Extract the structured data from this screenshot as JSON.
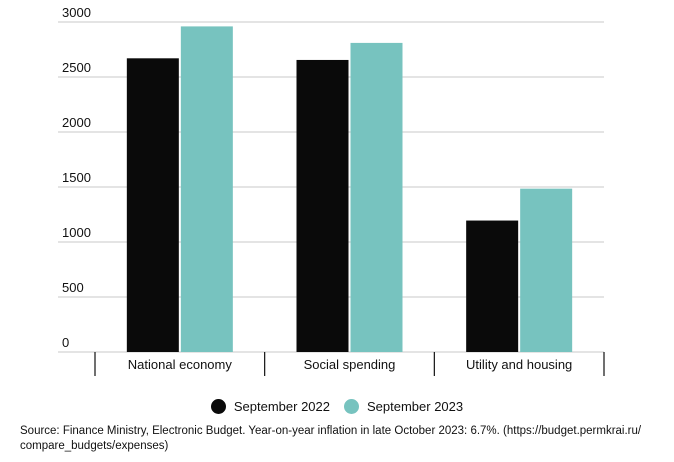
{
  "chart_data": {
    "type": "bar",
    "categories": [
      "National economy",
      "Social spending",
      "Utility and housing"
    ],
    "series": [
      {
        "name": "September 2022",
        "color": "#0a0a0a",
        "values": [
          2670,
          2655,
          1195
        ]
      },
      {
        "name": "September 2023",
        "color": "#77c3bf",
        "values": [
          2960,
          2810,
          1485
        ]
      }
    ],
    "ylim": [
      0,
      3000
    ],
    "yticks": [
      0,
      500,
      1000,
      1500,
      2000,
      2500,
      3000
    ],
    "grid": true,
    "legend_position": "bottom-center"
  },
  "source_text": "Source: Finance Ministry, Electronic Budget. Year-on-year inflation in late October 2023: 6.7%. (https://budget.permkrai.ru/ compare_budgets/expenses)"
}
